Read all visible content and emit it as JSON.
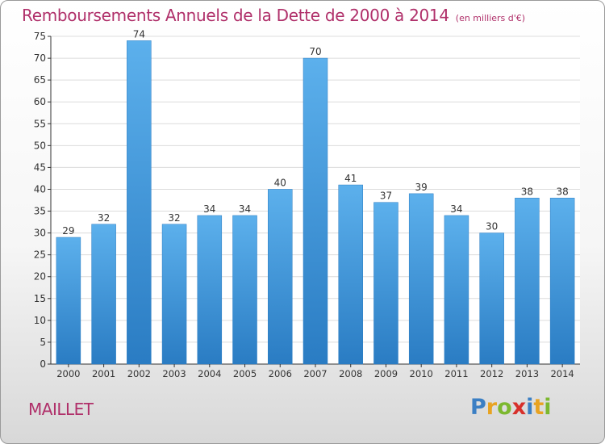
{
  "title": "Remboursements Annuels de la Dette de 2000 à 2014",
  "subtitle": "(en milliers d'€)",
  "commune": "MAILLET",
  "brand": {
    "letters": [
      "P",
      "r",
      "o",
      "x",
      "i",
      "t",
      "i"
    ],
    "colors": [
      "#3b7fc4",
      "#e8a322",
      "#7cb82f",
      "#d7302b",
      "#3b7fc4",
      "#e8a322",
      "#7cb82f"
    ]
  },
  "colors": {
    "bar": "#3f97de",
    "bar_light": "#5cb0ec",
    "bar_dark": "#2a7cc3",
    "grid": "#dcdcdc",
    "axis": "#333333",
    "title": "#b0306a"
  },
  "chart_data": {
    "type": "bar",
    "title": "Remboursements Annuels de la Dette de 2000 à 2014",
    "subtitle": "(en milliers d'€)",
    "categories": [
      "2000",
      "2001",
      "2002",
      "2003",
      "2004",
      "2005",
      "2006",
      "2007",
      "2008",
      "2009",
      "2010",
      "2011",
      "2012",
      "2013",
      "2014"
    ],
    "values": [
      29,
      32,
      74,
      32,
      34,
      34,
      40,
      70,
      41,
      37,
      39,
      34,
      30,
      38,
      38
    ],
    "ylim": [
      0,
      75
    ],
    "yticks": [
      0,
      5,
      10,
      15,
      20,
      25,
      30,
      35,
      40,
      45,
      50,
      55,
      60,
      65,
      70,
      75
    ],
    "grid": true,
    "data_labels": true,
    "legend": "none"
  }
}
